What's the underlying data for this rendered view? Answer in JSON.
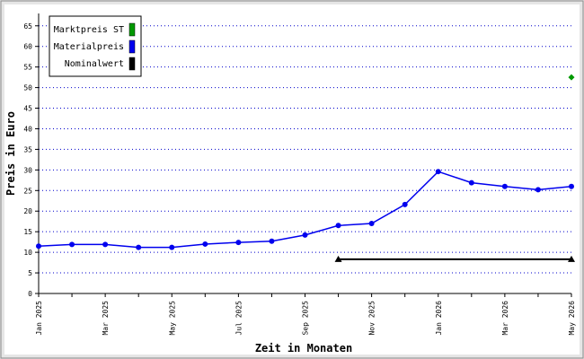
{
  "chart_data": {
    "type": "line",
    "x_label": "Zeit in Monaten",
    "y_label": "Preis in Euro",
    "categories": [
      "Jan 2025",
      null,
      "Mar 2025",
      null,
      "May 2025",
      null,
      "Jul 2025",
      null,
      "Sep 2025",
      null,
      "Nov 2025",
      null,
      "Jan 2026",
      null,
      "Mar 2026",
      null,
      "May 2026"
    ],
    "series": [
      {
        "name": "Marktpreis ST",
        "color": "#009900",
        "marker": "diamond",
        "values": [
          null,
          null,
          null,
          null,
          null,
          null,
          null,
          null,
          null,
          null,
          null,
          null,
          null,
          null,
          null,
          null,
          52.5
        ]
      },
      {
        "name": "Materialpreis",
        "color": "#0000ee",
        "marker": "circle",
        "values": [
          11.5,
          11.9,
          11.9,
          11.2,
          11.2,
          12.0,
          12.4,
          12.7,
          14.2,
          16.5,
          17.0,
          21.6,
          29.6,
          26.9,
          26.0,
          25.2,
          26.0
        ]
      },
      {
        "name": "Nominalwert",
        "color": "#000000",
        "marker": "triangle",
        "values": [
          null,
          null,
          null,
          null,
          null,
          null,
          null,
          null,
          null,
          8.3,
          8.3,
          8.3,
          8.3,
          8.3,
          8.3,
          8.3,
          8.3
        ]
      }
    ],
    "ylim": [
      0,
      68
    ],
    "yticks": [
      0,
      5,
      10,
      15,
      20,
      25,
      30,
      35,
      40,
      45,
      50,
      55,
      60,
      65
    ],
    "grid": true,
    "legend": "top-left"
  }
}
